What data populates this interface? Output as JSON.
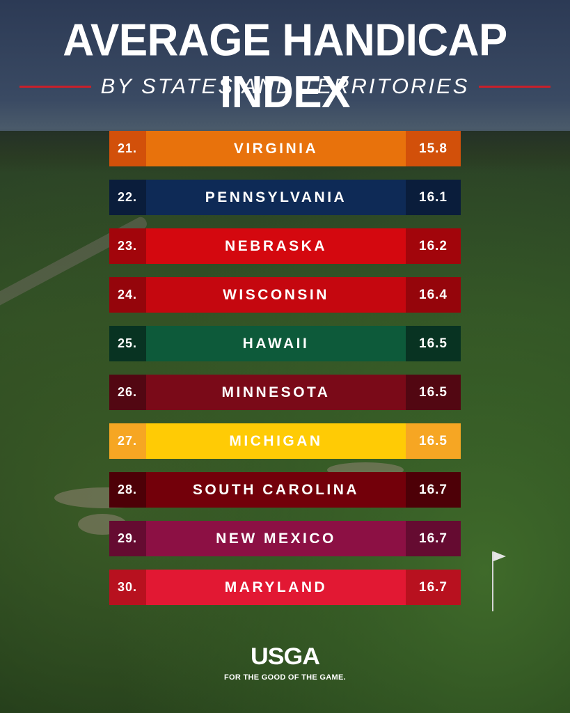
{
  "header": {
    "title": "AVERAGE HANDICAP INDEX",
    "subtitle": "BY STATES AND TERRITORIES"
  },
  "chart_data": {
    "type": "table",
    "title": "AVERAGE HANDICAP INDEX",
    "subtitle": "BY STATES AND TERRITORIES",
    "rows": [
      {
        "rank": "21.",
        "state": "VIRGINIA",
        "value": "15.8",
        "color": "#e8720c",
        "accent": "#d2500a"
      },
      {
        "rank": "22.",
        "state": "PENNSYLVANIA",
        "value": "16.1",
        "color": "#0e2a56",
        "accent": "#0a1d3b"
      },
      {
        "rank": "23.",
        "state": "NEBRASKA",
        "value": "16.2",
        "color": "#d4080f",
        "accent": "#a2050b"
      },
      {
        "rank": "24.",
        "state": "WISCONSIN",
        "value": "16.4",
        "color": "#c5070f",
        "accent": "#95050b"
      },
      {
        "rank": "25.",
        "state": "HAWAII",
        "value": "16.5",
        "color": "#0d5a3a",
        "accent": "#083322"
      },
      {
        "rank": "26.",
        "state": "MINNESOTA",
        "value": "16.5",
        "color": "#7a0a18",
        "accent": "#520712"
      },
      {
        "rank": "27.",
        "state": "MICHIGAN",
        "value": "16.5",
        "color": "#ffcb05",
        "accent": "#f6a623"
      },
      {
        "rank": "28.",
        "state": "SOUTH CAROLINA",
        "value": "16.7",
        "color": "#73000a",
        "accent": "#4d0007"
      },
      {
        "rank": "29.",
        "state": "NEW MEXICO",
        "value": "16.7",
        "color": "#8c1044",
        "accent": "#650b31"
      },
      {
        "rank": "30.",
        "state": "MARYLAND",
        "value": "16.7",
        "color": "#e21833",
        "accent": "#b8111f"
      }
    ]
  },
  "footer": {
    "logo": "USGA",
    "tagline": "FOR THE GOOD OF THE GAME."
  },
  "colors": {
    "rule": "#c8202b",
    "text": "#ffffff"
  }
}
